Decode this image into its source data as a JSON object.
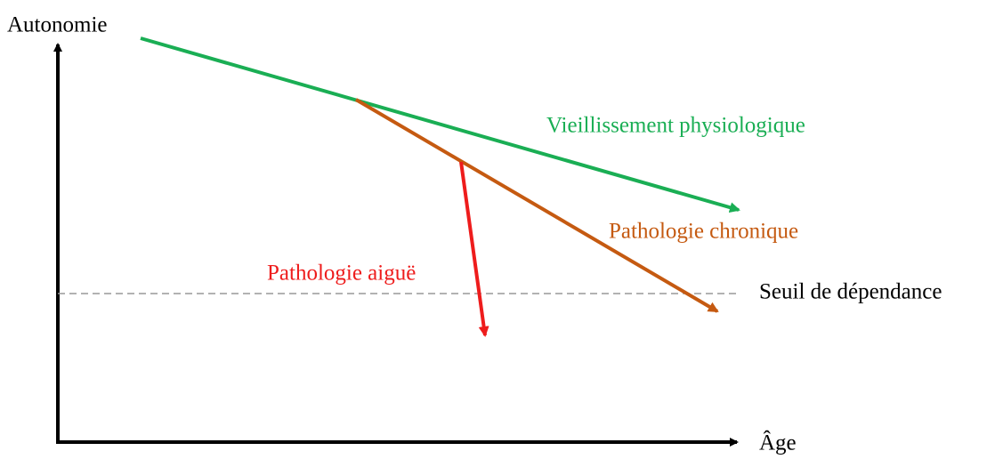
{
  "axes": {
    "y_label": "Autonomie",
    "x_label": "Âge"
  },
  "curves": [
    {
      "label": "Vieillissement physiologique"
    },
    {
      "label": "Pathologie chronique"
    },
    {
      "label": "Pathologie aiguë"
    }
  ],
  "threshold": {
    "label": "Seuil de dépendance"
  }
}
